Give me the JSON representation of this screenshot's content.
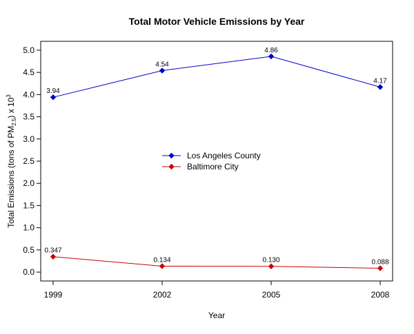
{
  "chart_data": {
    "type": "line",
    "title": "Total Motor Vehicle Emissions by Year",
    "xlabel": "Year",
    "ylabel": {
      "prefix": "Total Emissions (tons of  PM",
      "subscript": "2.5",
      "middle": ") x 10",
      "superscript": "3"
    },
    "x": [
      1999,
      2002,
      2005,
      2008
    ],
    "x_tick_labels": [
      "1999",
      "2002",
      "2005",
      "2008"
    ],
    "xlim": [
      1999,
      2008
    ],
    "ylim": [
      -0.2,
      5.2
    ],
    "y_ticks": [
      0.0,
      0.5,
      1.0,
      1.5,
      2.0,
      2.5,
      3.0,
      3.5,
      4.0,
      4.5,
      5.0
    ],
    "y_tick_labels": [
      "0.0",
      "0.5",
      "1.0",
      "1.5",
      "2.0",
      "2.5",
      "3.0",
      "3.5",
      "4.0",
      "4.5",
      "5.0"
    ],
    "grid": false,
    "legend_position": "center",
    "series": [
      {
        "name": "Los Angeles County",
        "color": "#0000cc",
        "values": [
          3.94,
          4.54,
          4.86,
          4.17
        ],
        "labels": [
          "3.94",
          "4.54",
          "4.86",
          "4.17"
        ]
      },
      {
        "name": "Baltimore City",
        "color": "#cc0000",
        "values": [
          0.347,
          0.134,
          0.13,
          0.088
        ],
        "labels": [
          "0.347",
          "0.134",
          "0.130",
          "0.088"
        ]
      }
    ]
  }
}
